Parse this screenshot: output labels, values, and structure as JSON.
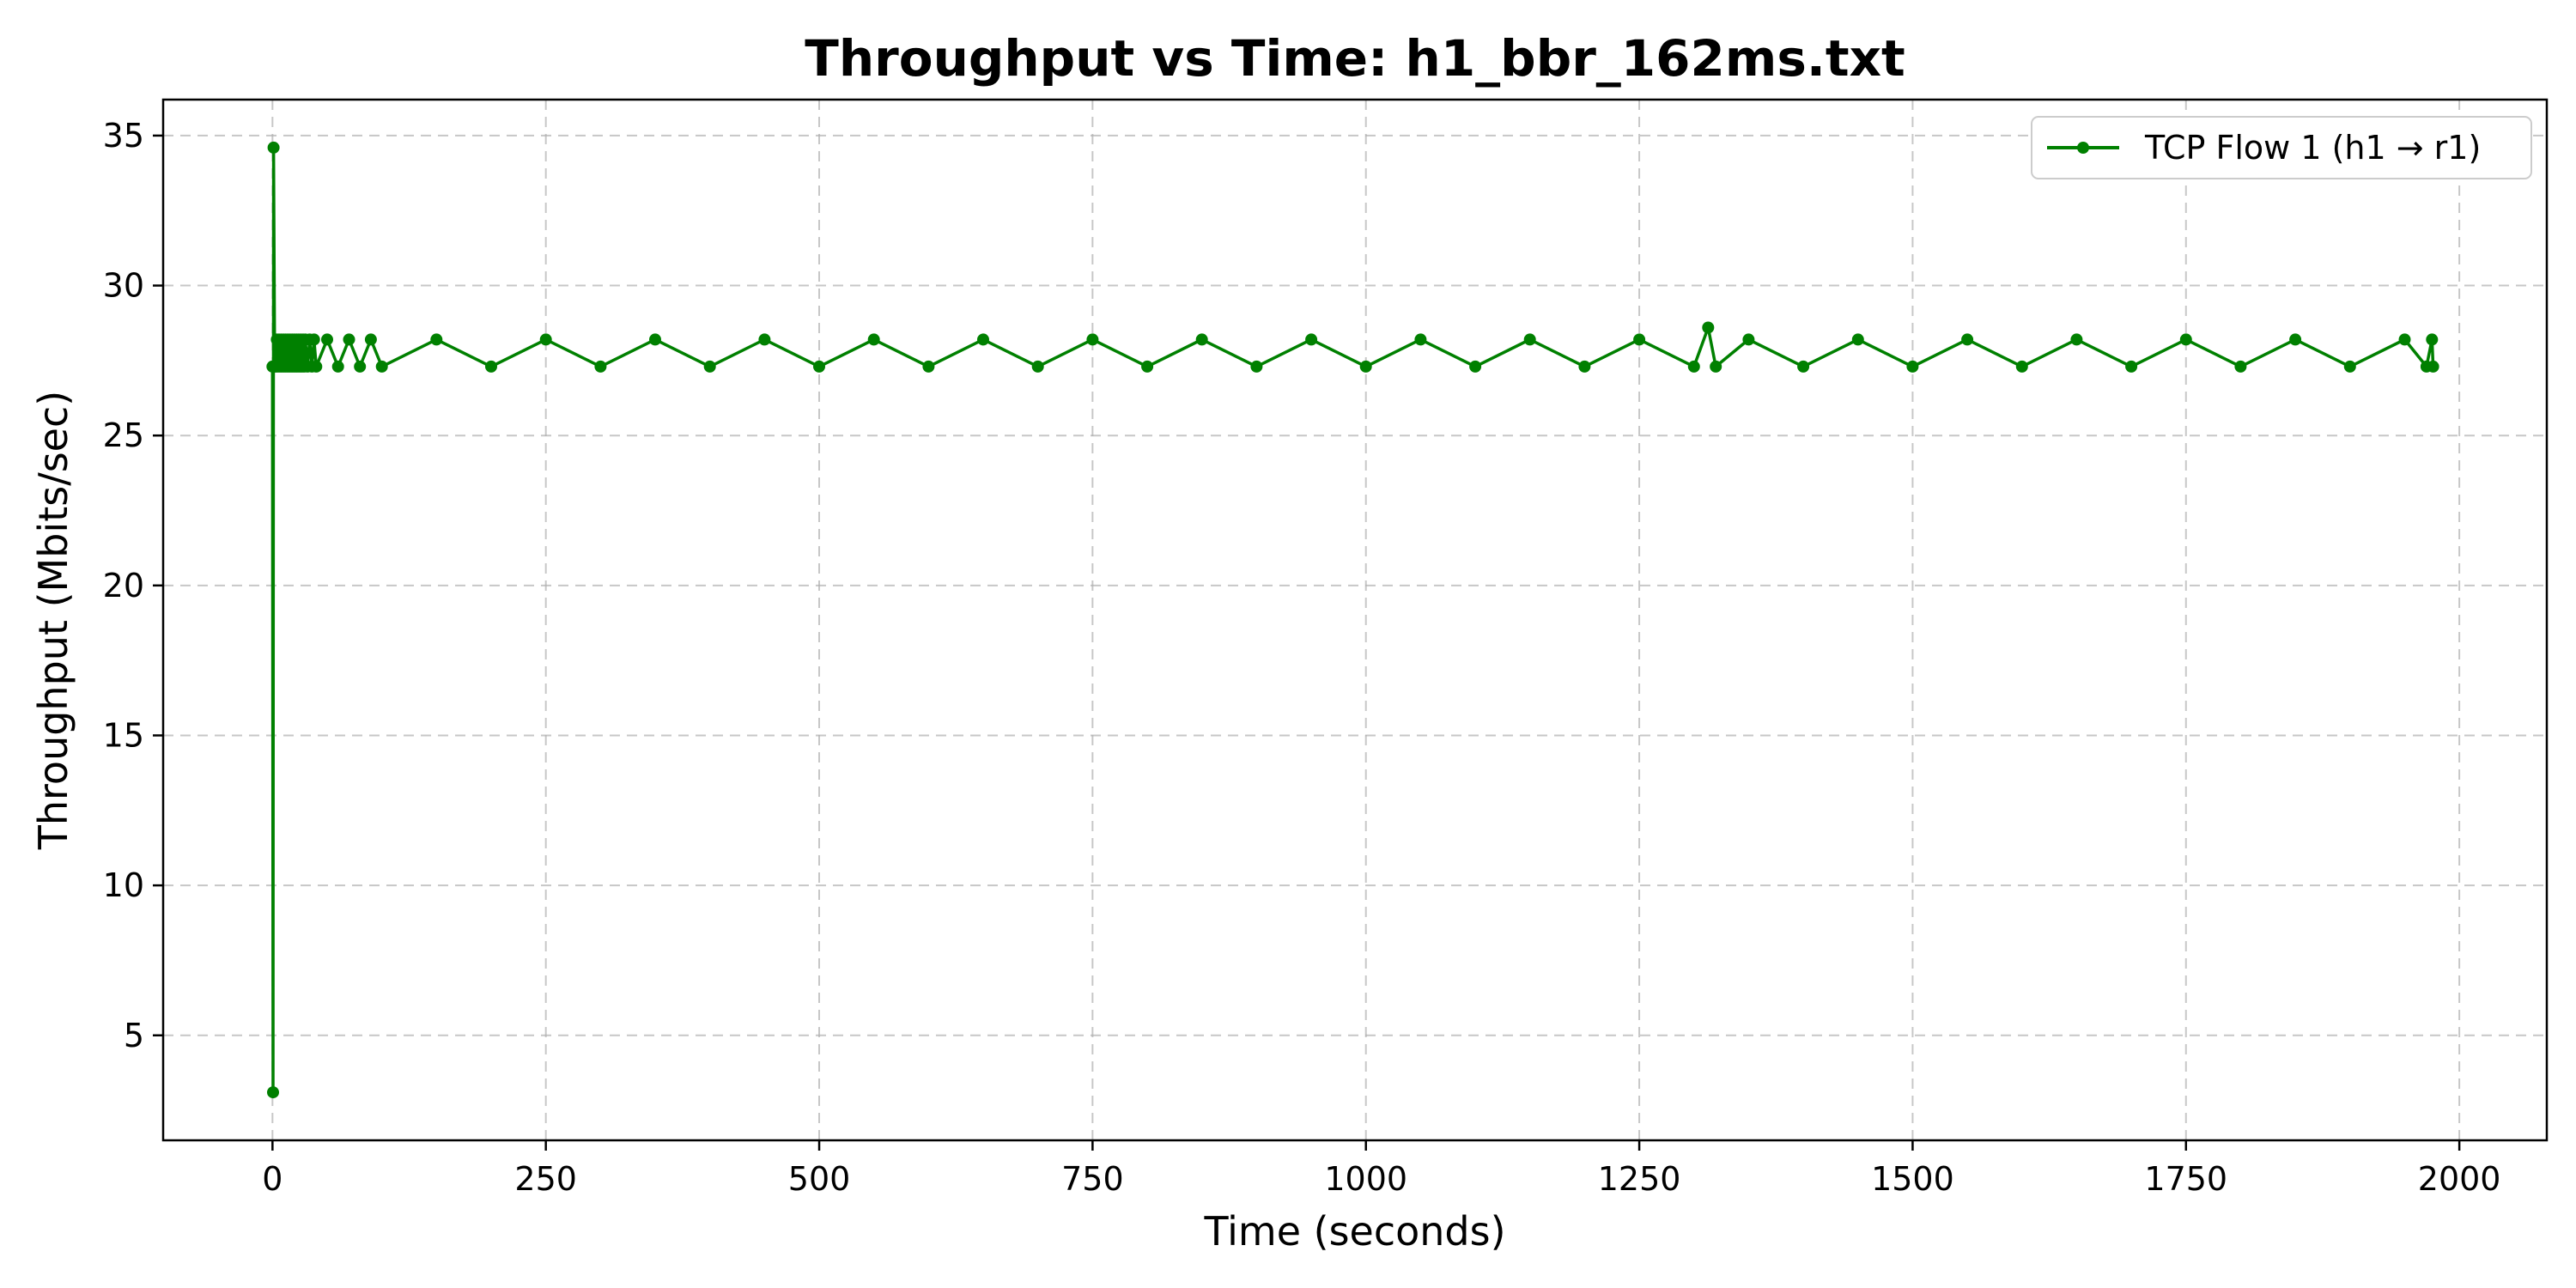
{
  "chart_data": {
    "type": "line",
    "title": "Throughput vs Time: h1_bbr_162ms.txt",
    "xlabel": "Time (seconds)",
    "ylabel": "Throughput (Mbits/sec)",
    "xlim": [
      -100,
      2080
    ],
    "ylim": [
      1.5,
      36.2
    ],
    "grid": true,
    "legend_position": "top-right",
    "x_ticks": [
      0,
      250,
      500,
      750,
      1000,
      1250,
      1500,
      1750,
      2000
    ],
    "y_ticks": [
      5,
      10,
      15,
      20,
      25,
      30,
      35
    ],
    "series": [
      {
        "name": "TCP Flow 1 (h1 → r1)",
        "color": "#008000",
        "marker": "circle",
        "x": [
          0,
          0.5,
          1,
          2,
          3,
          4,
          5,
          6,
          7,
          8,
          9,
          10,
          11,
          12,
          13,
          14,
          15,
          16,
          17,
          18,
          19,
          20,
          21,
          22,
          23,
          24,
          25,
          26,
          27,
          28,
          29,
          30,
          32,
          34,
          36,
          38,
          40,
          50,
          60,
          70,
          80,
          90,
          100,
          150,
          200,
          250,
          300,
          350,
          400,
          450,
          500,
          550,
          600,
          650,
          700,
          750,
          800,
          850,
          900,
          950,
          1000,
          1050,
          1100,
          1150,
          1200,
          1250,
          1300,
          1313,
          1320,
          1350,
          1400,
          1450,
          1500,
          1550,
          1600,
          1650,
          1700,
          1750,
          1800,
          1850,
          1900,
          1950,
          1970,
          1975,
          1976
        ],
        "y": [
          27.3,
          3.1,
          34.6,
          27.3,
          27.3,
          28.2,
          27.3,
          28.2,
          27.3,
          28.2,
          27.3,
          28.2,
          27.3,
          28.2,
          27.3,
          28.2,
          27.3,
          28.2,
          27.3,
          28.2,
          27.3,
          28.2,
          27.3,
          28.2,
          27.3,
          28.2,
          27.3,
          28.2,
          27.3,
          28.2,
          27.3,
          28.2,
          27.3,
          28.2,
          27.3,
          28.2,
          27.3,
          28.2,
          27.3,
          28.2,
          27.3,
          28.2,
          27.3,
          28.2,
          27.3,
          28.2,
          27.3,
          28.2,
          27.3,
          28.2,
          27.3,
          28.2,
          27.3,
          28.2,
          27.3,
          28.2,
          27.3,
          28.2,
          27.3,
          28.2,
          27.3,
          28.2,
          27.3,
          28.2,
          27.3,
          28.2,
          27.3,
          28.6,
          27.3,
          28.2,
          27.3,
          28.2,
          27.3,
          28.2,
          27.3,
          28.2,
          27.3,
          28.2,
          27.3,
          28.2,
          27.3,
          28.2,
          27.3,
          28.2,
          27.3
        ]
      }
    ]
  }
}
